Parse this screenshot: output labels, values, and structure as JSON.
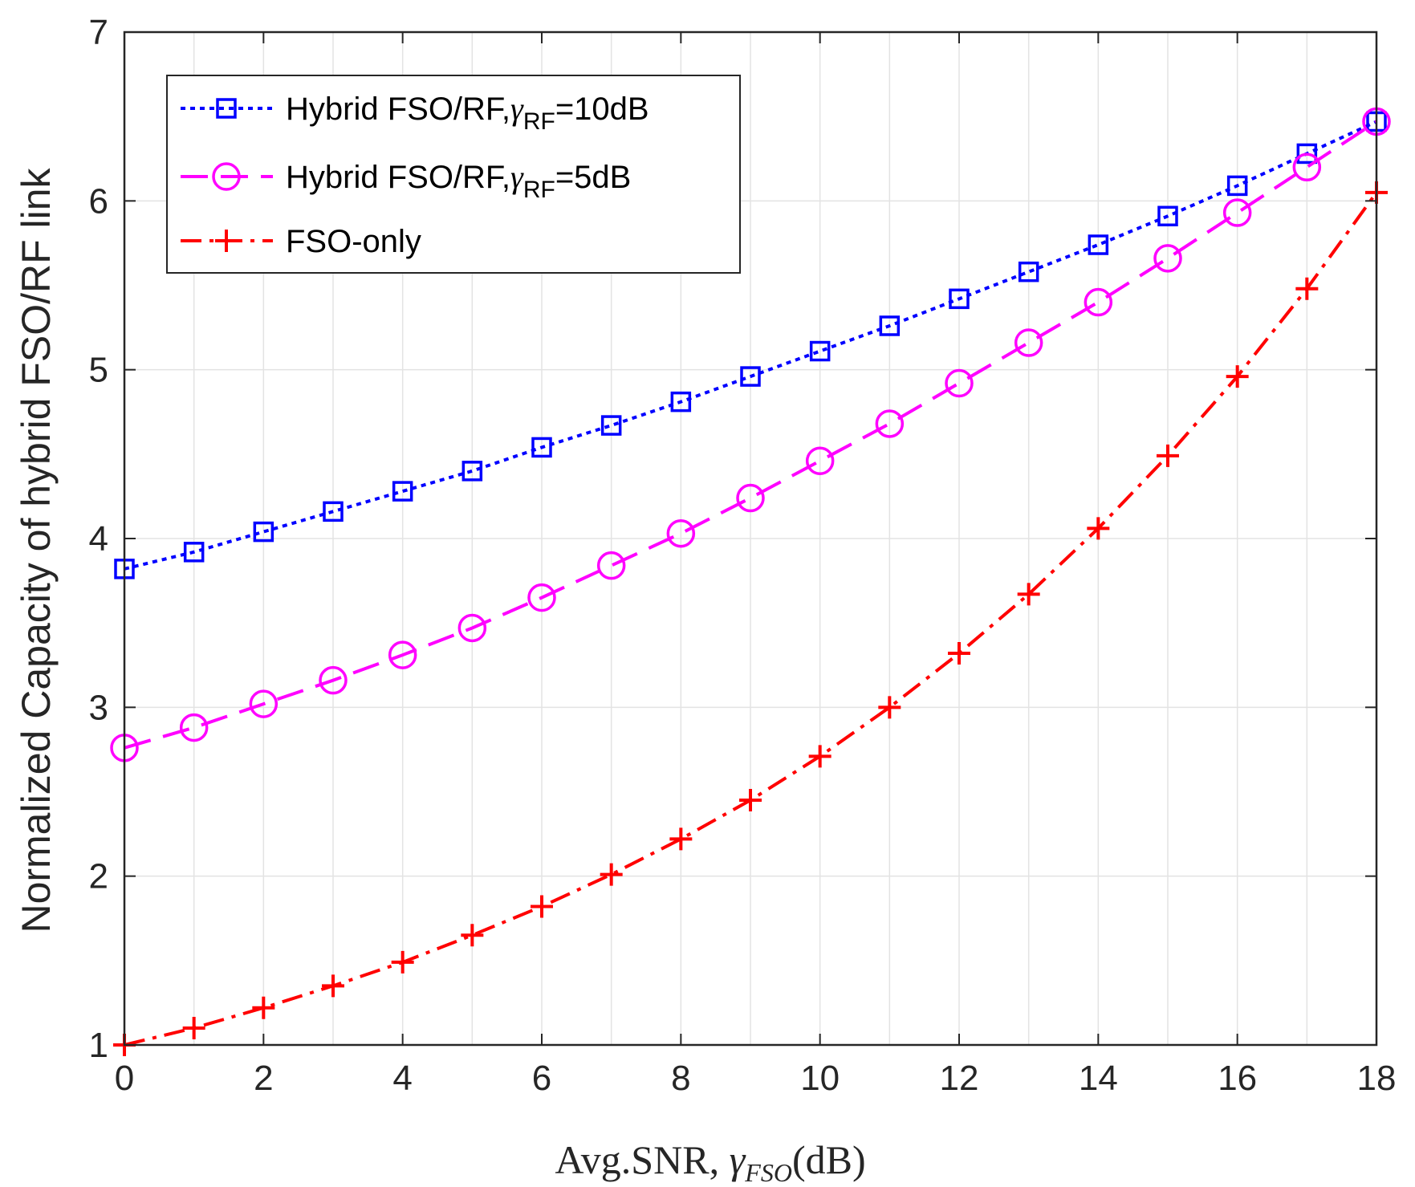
{
  "chart_data": {
    "type": "line",
    "title": "",
    "xlabel": "Avg.SNR, ",
    "xlabel_symbol": "γ",
    "xlabel_subscript": "FSO",
    "xlabel_unit": "(dB)",
    "ylabel": "Normalized Capacity of hybrid FSO/RF link",
    "xlim": [
      0,
      18
    ],
    "ylim": [
      1,
      7
    ],
    "xticks": [
      0,
      2,
      4,
      6,
      8,
      10,
      12,
      14,
      16,
      18
    ],
    "yticks": [
      1,
      2,
      3,
      4,
      5,
      6,
      7
    ],
    "grid": true,
    "legend_position": "top-left",
    "x": [
      0,
      1,
      2,
      3,
      4,
      5,
      6,
      7,
      8,
      9,
      10,
      11,
      12,
      13,
      14,
      15,
      16,
      17,
      18
    ],
    "series": [
      {
        "name": "Hybrid FSO/RF,",
        "legend_symbol": "γ",
        "legend_sub": "RF",
        "legend_suffix": "=10dB",
        "color": "#0000ff",
        "marker": "square",
        "dash": "dotted",
        "values": [
          3.82,
          3.92,
          4.04,
          4.16,
          4.28,
          4.4,
          4.54,
          4.67,
          4.81,
          4.96,
          5.11,
          5.26,
          5.42,
          5.58,
          5.74,
          5.91,
          6.09,
          6.28,
          6.47
        ]
      },
      {
        "name": "Hybrid FSO/RF,",
        "legend_symbol": "γ",
        "legend_sub": "RF",
        "legend_suffix": "=5dB",
        "color": "#ff00ff",
        "marker": "circle",
        "dash": "dashed",
        "values": [
          2.76,
          2.88,
          3.02,
          3.16,
          3.31,
          3.47,
          3.65,
          3.84,
          4.03,
          4.24,
          4.46,
          4.68,
          4.92,
          5.16,
          5.4,
          5.66,
          5.93,
          6.2,
          6.47
        ]
      },
      {
        "name": "FSO-only",
        "legend_symbol": "",
        "legend_sub": "",
        "legend_suffix": "",
        "color": "#ff0000",
        "marker": "plus",
        "dash": "dashdot",
        "values": [
          1.0,
          1.1,
          1.22,
          1.35,
          1.49,
          1.65,
          1.82,
          2.01,
          2.22,
          2.45,
          2.71,
          3.0,
          3.32,
          3.67,
          4.06,
          4.49,
          4.96,
          5.48,
          6.05
        ]
      }
    ]
  }
}
